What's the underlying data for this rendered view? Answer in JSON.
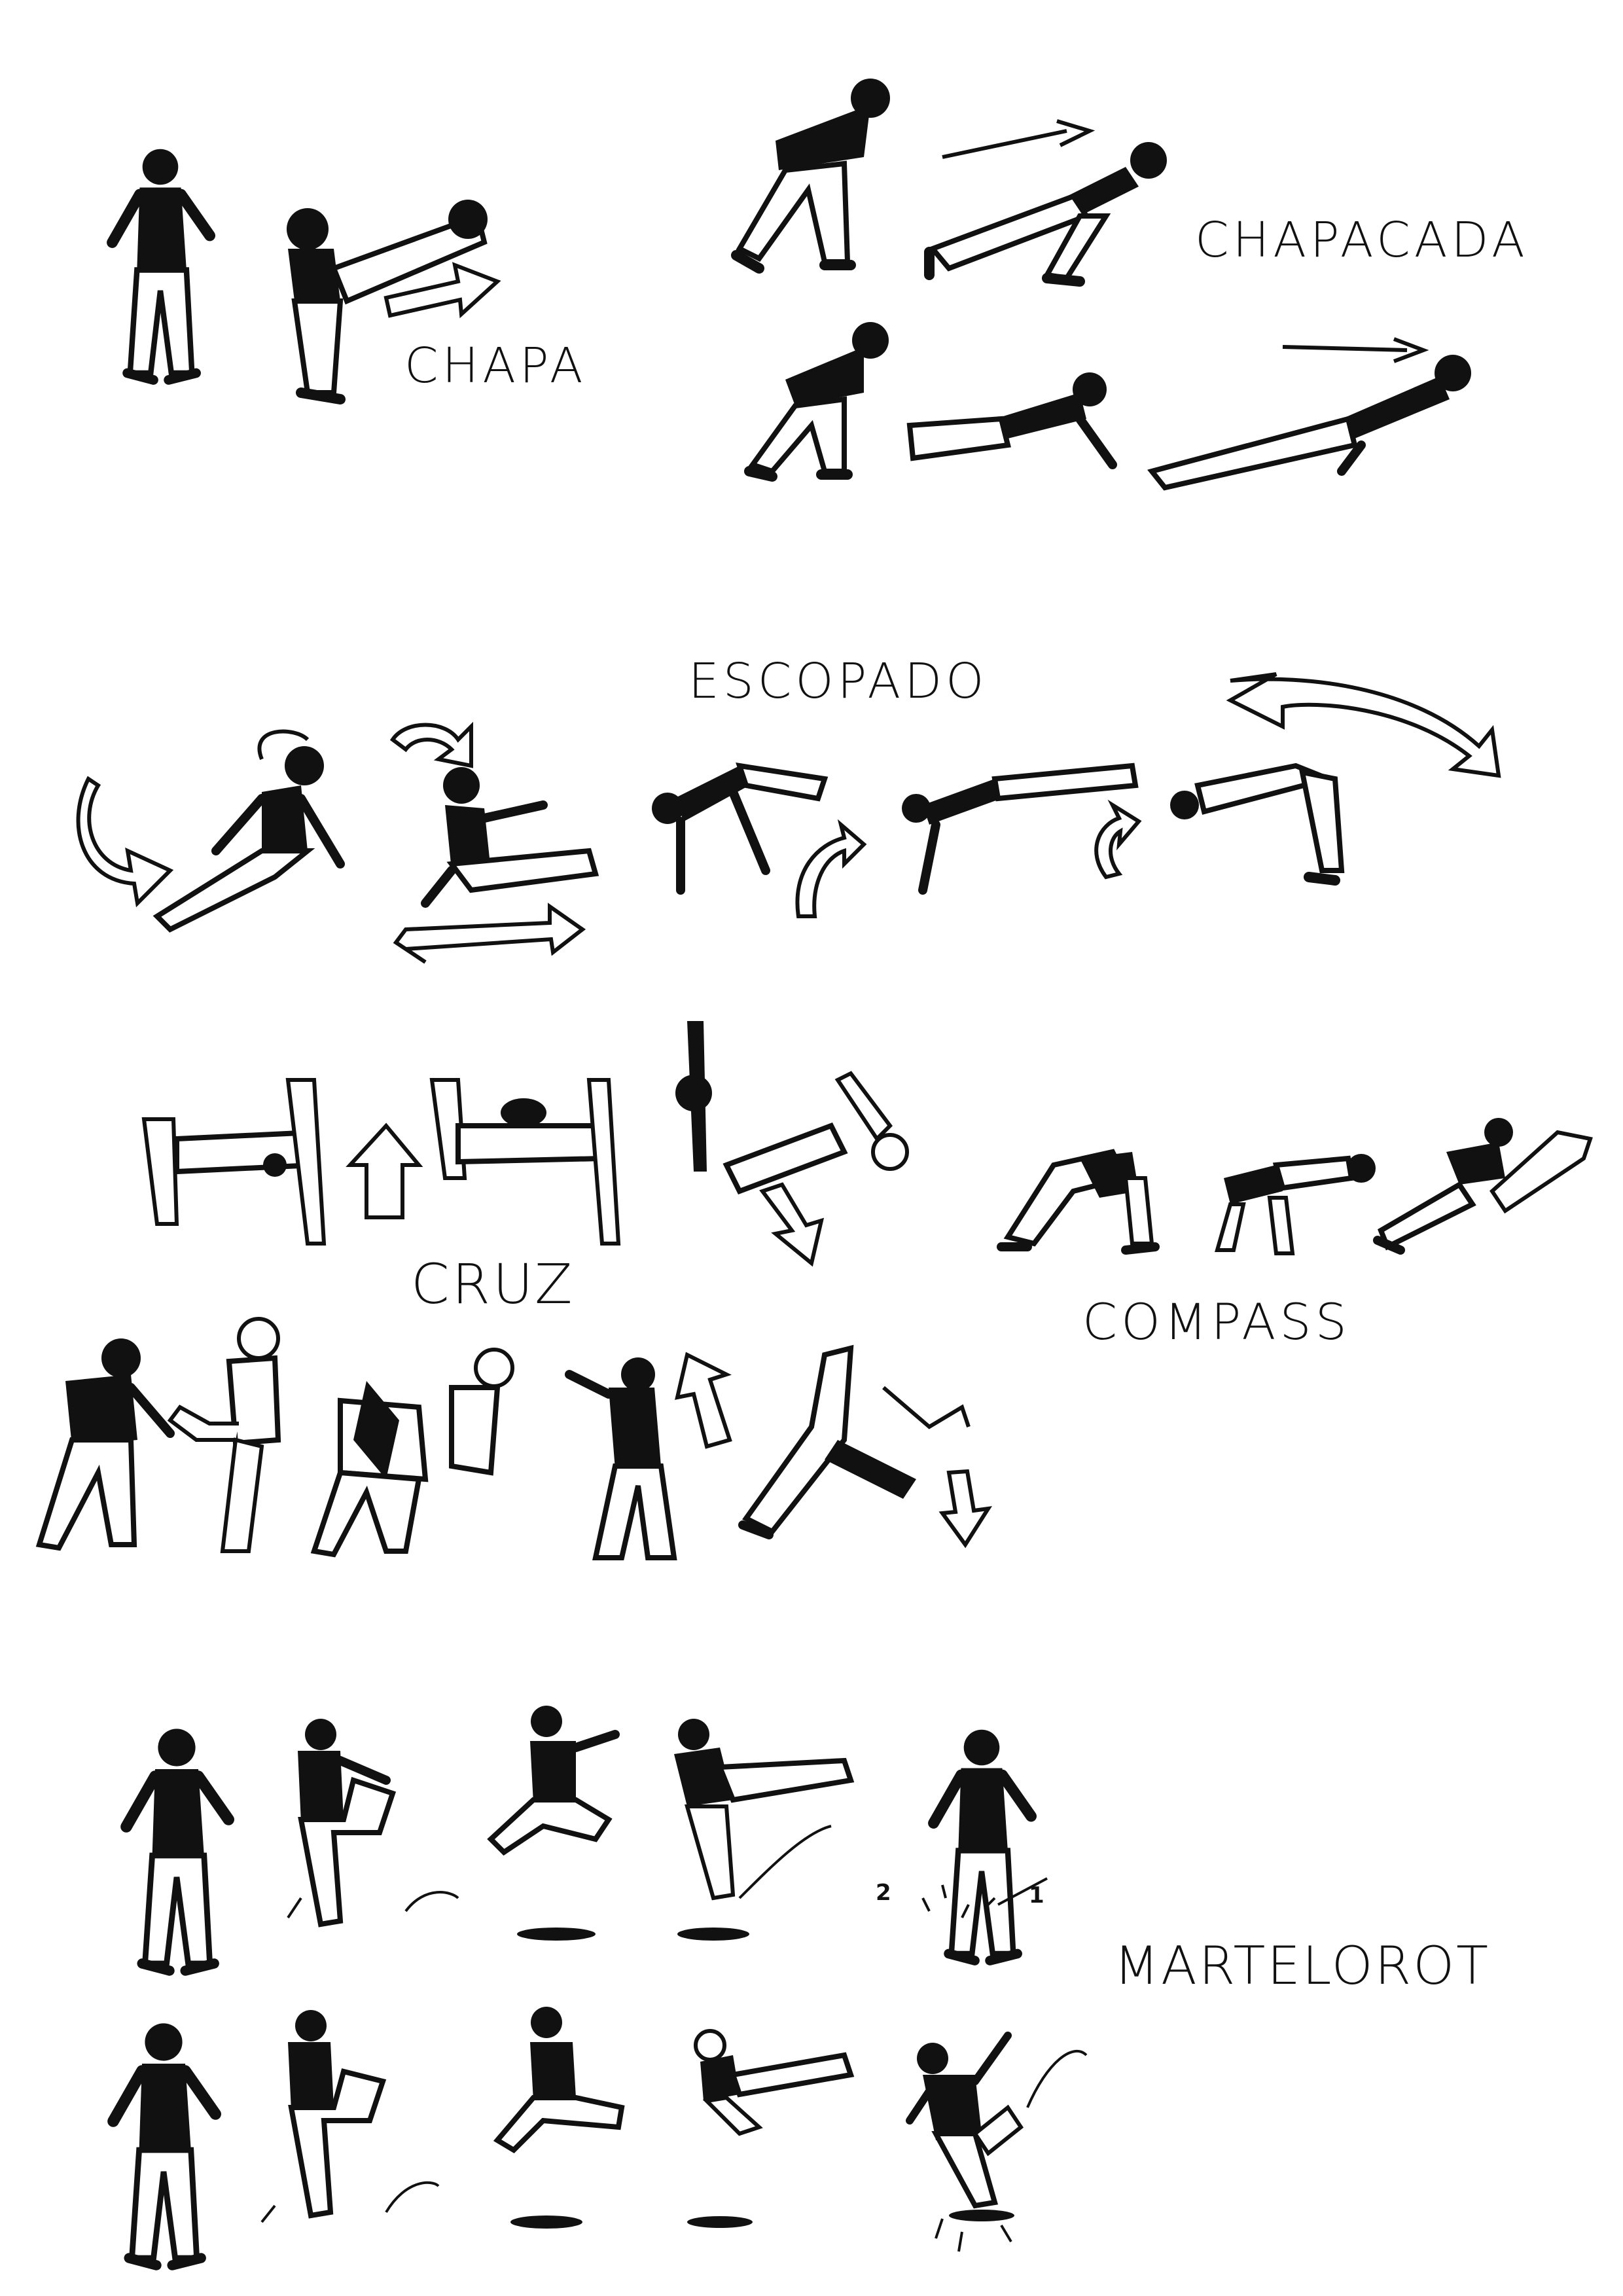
{
  "labels": {
    "chapa": "CHAPA",
    "chapacada": "CHAPACADA",
    "escopado": "ESCOPADO",
    "cruz": "CRUZ",
    "compass": "COMPASS",
    "martelorot": "MARTELOROT"
  },
  "annotations": {
    "step_two": "2",
    "step_one": "1"
  },
  "colors": {
    "ink": "#111111",
    "paper": "#ffffff"
  }
}
